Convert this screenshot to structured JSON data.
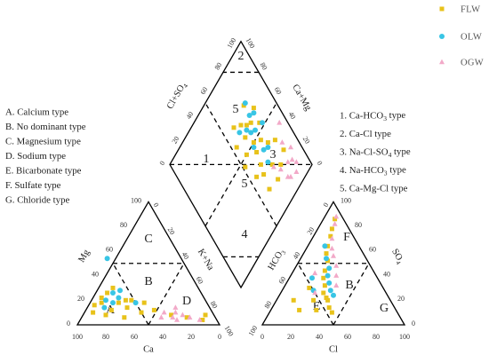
{
  "chart_data": {
    "type": "scatter",
    "subtype": "piper-trilinear",
    "colors": {
      "FLW": "#e8c21a",
      "OLW": "#38c5e5",
      "OGW": "#f2a9c8"
    },
    "legend": {
      "placement": "top-right",
      "entries": [
        {
          "name": "FLW",
          "marker": "square"
        },
        {
          "name": "OLW",
          "marker": "circle"
        },
        {
          "name": "OGW",
          "marker": "triangle"
        }
      ]
    },
    "cation_triangle": {
      "axes": {
        "left": "Mg",
        "right": "K+Na",
        "bottom": "Ca"
      },
      "ticks": [
        "0",
        "20",
        "40",
        "60",
        "80",
        "100"
      ],
      "bottom_ticks": [
        "100",
        "80",
        "60",
        "40",
        "20",
        "0"
      ],
      "zones": [
        "A",
        "B",
        "C",
        "D"
      ]
    },
    "anion_triangle": {
      "axes": {
        "left": "HCO3",
        "right": "SO4",
        "bottom": "Cl"
      },
      "ticks": [
        "0",
        "20",
        "40",
        "60",
        "80",
        "100"
      ],
      "bottom_ticks": [
        "0",
        "20",
        "40",
        "60",
        "80",
        "100"
      ],
      "zones": [
        "B",
        "E",
        "F",
        "G"
      ]
    },
    "diamond": {
      "axes": {
        "upper_left": "Cl+SO4",
        "upper_right": "Ca+Mg"
      },
      "ticks": [
        "0",
        "20",
        "40",
        "60",
        "80",
        "100"
      ],
      "zones": [
        "1",
        "2",
        "3",
        "4",
        "5",
        "5"
      ]
    },
    "cation_points": {
      "FLW": [
        [
          56,
          20
        ],
        [
          62,
          18
        ],
        [
          70,
          12
        ],
        [
          76,
          8
        ],
        [
          80,
          16
        ],
        [
          84,
          10
        ],
        [
          66,
          26
        ],
        [
          72,
          22
        ],
        [
          58,
          14
        ],
        [
          50,
          10
        ],
        [
          40,
          12
        ],
        [
          30,
          8
        ],
        [
          20,
          6
        ],
        [
          10,
          4
        ],
        [
          6,
          8
        ],
        [
          64,
          6
        ],
        [
          74,
          18
        ],
        [
          52,
          20
        ],
        [
          60,
          30
        ],
        [
          44,
          18
        ]
      ],
      "OLW": [
        [
          70,
          20
        ],
        [
          60,
          22
        ],
        [
          66,
          18
        ],
        [
          52,
          54
        ],
        [
          56,
          28
        ],
        [
          62,
          26
        ],
        [
          50,
          18
        ],
        [
          74,
          14
        ]
      ],
      "OGW": [
        [
          30,
          6
        ],
        [
          26,
          10
        ],
        [
          22,
          8
        ],
        [
          18,
          6
        ],
        [
          34,
          10
        ],
        [
          12,
          4
        ],
        [
          24,
          14
        ],
        [
          38,
          6
        ],
        [
          28,
          4
        ]
      ]
    },
    "anion_points": {
      "FLW": [
        [
          8,
          86
        ],
        [
          10,
          78
        ],
        [
          12,
          72
        ],
        [
          14,
          64
        ],
        [
          16,
          58
        ],
        [
          20,
          52
        ],
        [
          22,
          44
        ],
        [
          24,
          38
        ],
        [
          28,
          32
        ],
        [
          30,
          26
        ],
        [
          34,
          22
        ],
        [
          36,
          20
        ],
        [
          40,
          14
        ],
        [
          44,
          10
        ],
        [
          18,
          30
        ],
        [
          26,
          20
        ],
        [
          32,
          12
        ],
        [
          12,
          20
        ],
        [
          20,
          12
        ]
      ],
      "OLW": [
        [
          12,
          64
        ],
        [
          18,
          54
        ],
        [
          24,
          46
        ],
        [
          26,
          40
        ],
        [
          30,
          34
        ],
        [
          34,
          28
        ],
        [
          38,
          24
        ],
        [
          16,
          38
        ],
        [
          22,
          28
        ]
      ],
      "OGW": [
        [
          8,
          88
        ],
        [
          10,
          82
        ],
        [
          14,
          70
        ],
        [
          18,
          62
        ],
        [
          22,
          56
        ],
        [
          28,
          48
        ],
        [
          32,
          40
        ],
        [
          36,
          32
        ],
        [
          16,
          42
        ],
        [
          24,
          26
        ]
      ]
    },
    "diamond_points": {
      "FLW": [
        [
          70,
          62
        ],
        [
          74,
          60
        ],
        [
          68,
          50
        ],
        [
          66,
          44
        ],
        [
          64,
          36
        ],
        [
          62,
          30
        ],
        [
          60,
          70
        ],
        [
          76,
          72
        ],
        [
          80,
          54
        ],
        [
          78,
          40
        ],
        [
          58,
          50
        ],
        [
          56,
          34
        ],
        [
          72,
          28
        ],
        [
          84,
          36
        ],
        [
          86,
          26
        ],
        [
          70,
          18
        ],
        [
          60,
          20
        ],
        [
          66,
          66
        ],
        [
          82,
          64
        ],
        [
          52,
          46
        ],
        [
          54,
          60
        ],
        [
          74,
          46
        ],
        [
          64,
          58
        ],
        [
          78,
          22
        ]
      ],
      "OLW": [
        [
          78,
          72
        ],
        [
          76,
          64
        ],
        [
          70,
          56
        ],
        [
          68,
          60
        ],
        [
          80,
          62
        ],
        [
          74,
          54
        ],
        [
          66,
          48
        ],
        [
          82,
          52
        ],
        [
          62,
          64
        ],
        [
          72,
          40
        ],
        [
          70,
          32
        ],
        [
          76,
          38
        ]
      ],
      "OGW": [
        [
          88,
          16
        ],
        [
          90,
          12
        ],
        [
          86,
          8
        ],
        [
          84,
          18
        ],
        [
          80,
          10
        ],
        [
          92,
          22
        ],
        [
          76,
          20
        ],
        [
          72,
          26
        ],
        [
          88,
          30
        ],
        [
          94,
          40
        ],
        [
          78,
          12
        ]
      ]
    },
    "zone_labels": [
      "A. Calcium type",
      "B. No dominant type",
      "C. Magnesium type",
      "D. Sodium type",
      "E. Bicarbonate type",
      "F. Sulfate type",
      "G. Chloride type"
    ],
    "diamond_types": [
      {
        "num": "1. ",
        "pre": "Ca-HCO",
        "sub": "3",
        "post": " type"
      },
      {
        "num": "2. ",
        "pre": "Ca-Cl type",
        "sub": "",
        "post": ""
      },
      {
        "num": "3. ",
        "pre": "Na-Cl-SO",
        "sub": "4",
        "post": " type"
      },
      {
        "num": "4. ",
        "pre": "Na-HCO",
        "sub": "3",
        "post": " type"
      },
      {
        "num": "5. ",
        "pre": "Ca-Mg-Cl type",
        "sub": "",
        "post": ""
      }
    ]
  }
}
